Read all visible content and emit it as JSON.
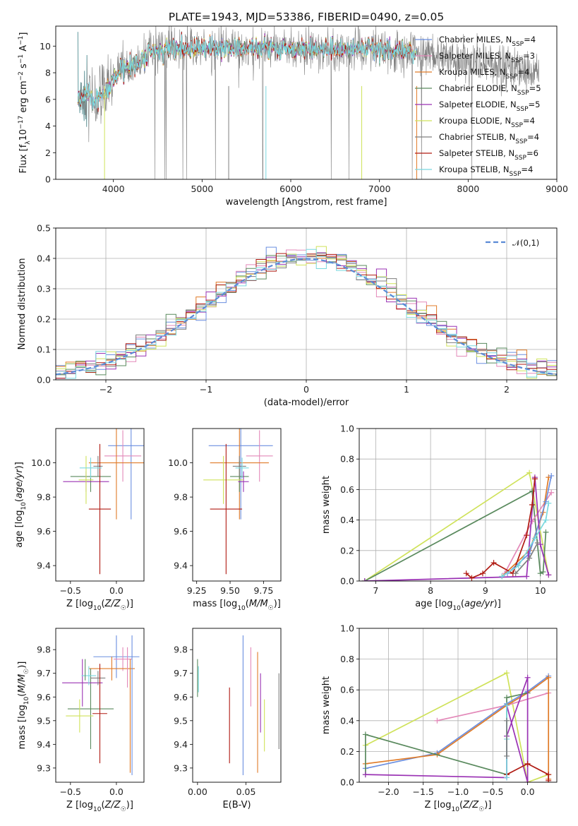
{
  "title": "PLATE=1943, MJD=53386, FIBERID=0490, z=0.05",
  "colors": {
    "chabrier_miles": "#6b8fe0",
    "salpeter_miles": "#e389b9",
    "kroupa_miles": "#e07b28",
    "chabrier_elodie": "#5a8a5e",
    "salpeter_elodie": "#9a32b4",
    "kroupa_elodie": "#cfe25a",
    "chabrier_stelib": "#7f7f7f",
    "salpeter_stelib": "#b01a12",
    "kroupa_stelib": "#79d8df",
    "normal": "#5b8ad6"
  },
  "chart_data": [
    {
      "id": "spectrum",
      "type": "line",
      "xlabel": "wavelength [Angstrom, rest frame]",
      "ylabel": "Flux [f_λ10^-17 erg cm^-2 s^-1 A^-1]",
      "xlim": [
        3350,
        9000
      ],
      "ylim": [
        0,
        11.5
      ],
      "xticks": [
        4000,
        5000,
        6000,
        7000,
        8000,
        9000
      ],
      "yticks": [
        0,
        2,
        4,
        6,
        8,
        10
      ],
      "legend_position": "upper-right",
      "legend": [
        "Chabrier MILES, N_SSP=4",
        "Salpeter MILES, N_SSP=3",
        "Kroupa MILES, N_SSP=4",
        "Chabrier ELODIE, N_SSP=5",
        "Salpeter ELODIE, N_SSP=5",
        "Kroupa ELODIE, N_SSP=4",
        "Chabrier STELIB, N_SSP=4",
        "Salpeter STELIB, N_SSP=6",
        "Kroupa STELIB, N_SSP=4"
      ],
      "continuum": {
        "x": [
          3600,
          3700,
          3800,
          3900,
          4000,
          4100,
          4200,
          4300,
          4400,
          4500,
          4600,
          4800,
          5000,
          5200,
          5500,
          6000,
          6500,
          7000,
          7400,
          7800,
          8200,
          8600,
          8800
        ],
        "y": [
          6.0,
          6.4,
          5.8,
          6.6,
          7.6,
          8.2,
          8.4,
          8.8,
          9.4,
          9.7,
          9.8,
          9.9,
          9.8,
          9.9,
          9.9,
          9.8,
          9.8,
          9.7,
          9.5,
          9.0,
          8.6,
          8.2,
          8.1
        ]
      },
      "model_range": [
        3600,
        7420
      ],
      "data_range": [
        3600,
        8800
      ],
      "series": [
        {
          "name": "Chabrier MILES, N_SSP=4",
          "color_key": "chabrier_miles",
          "model": "miles"
        },
        {
          "name": "Salpeter MILES, N_SSP=3",
          "color_key": "salpeter_miles",
          "model": "miles"
        },
        {
          "name": "Kroupa MILES, N_SSP=4",
          "color_key": "kroupa_miles",
          "model": "miles"
        },
        {
          "name": "Chabrier ELODIE, N_SSP=5",
          "color_key": "chabrier_elodie",
          "model": "elodie"
        },
        {
          "name": "Salpeter ELODIE, N_SSP=5",
          "color_key": "salpeter_elodie",
          "model": "elodie"
        },
        {
          "name": "Kroupa ELODIE, N_SSP=4",
          "color_key": "kroupa_elodie",
          "model": "elodie"
        },
        {
          "name": "Chabrier STELIB, N_SSP=4",
          "color_key": "chabrier_stelib",
          "model": "data"
        },
        {
          "name": "Salpeter STELIB, N_SSP=6",
          "color_key": "salpeter_stelib",
          "model": "stelib"
        },
        {
          "name": "Kroupa STELIB, N_SSP=4",
          "color_key": "kroupa_stelib",
          "model": "stelib"
        }
      ]
    },
    {
      "id": "residuals",
      "type": "line",
      "xlabel": "(data-model)/error",
      "ylabel": "Normed distribution",
      "xlim": [
        -2.5,
        2.5
      ],
      "ylim": [
        0,
        0.5
      ],
      "xticks": [
        -2,
        -1,
        0,
        1,
        2
      ],
      "yticks": [
        0.0,
        0.1,
        0.2,
        0.3,
        0.4,
        0.5
      ],
      "grid": true,
      "legend_position": "upper-right",
      "legend": [
        "𝒩(0,1)"
      ],
      "bin_width": 0.1,
      "series_colors": [
        "chabrier_miles",
        "salpeter_miles",
        "kroupa_miles",
        "chabrier_elodie",
        "salpeter_elodie",
        "kroupa_elodie",
        "chabrier_stelib",
        "salpeter_stelib",
        "kroupa_stelib"
      ]
    },
    {
      "id": "age_Z",
      "type": "scatter",
      "xlabel": "Z [log10(Z/Z☉)]",
      "ylabel": "age [log10(age/yr)]",
      "xlim": [
        -0.66,
        0.3
      ],
      "ylim": [
        9.31,
        10.2
      ],
      "xticks": [
        -0.5,
        0.0
      ],
      "xticklabels": [
        "−0.5",
        "0.0"
      ],
      "yticks": [
        9.4,
        9.6,
        9.8,
        10.0
      ],
      "yticklabels": [
        "9.4",
        "9.6",
        "9.8",
        "10.0"
      ],
      "points": [
        {
          "c": "chabrier_miles",
          "x": 0.16,
          "xerr": 0.25,
          "y": 10.1,
          "yerr": 0.43
        },
        {
          "c": "salpeter_miles",
          "x": 0.07,
          "xerr": 0.2,
          "y": 10.04,
          "yerr": 0.15
        },
        {
          "c": "kroupa_miles",
          "x": 0.0,
          "xerr": 0.3,
          "y": 10.0,
          "yerr": 0.33
        },
        {
          "c": "chabrier_elodie",
          "x": -0.28,
          "xerr": 0.22,
          "y": 9.92,
          "yerr": 0.09
        },
        {
          "c": "salpeter_elodie",
          "x": -0.33,
          "xerr": 0.25,
          "y": 9.89,
          "yerr": 0.06
        },
        {
          "c": "kroupa_elodie",
          "x": -0.33,
          "xerr": 0.08,
          "y": 9.9,
          "yerr": 0.14
        },
        {
          "c": "chabrier_stelib",
          "x": -0.2,
          "xerr": 0.05,
          "y": 9.98,
          "yerr": 0.06
        },
        {
          "c": "salpeter_stelib",
          "x": -0.18,
          "xerr": 0.12,
          "y": 9.73,
          "yerr": 0.38
        },
        {
          "c": "kroupa_stelib",
          "x": -0.28,
          "xerr": 0.12,
          "y": 9.97,
          "yerr": 0.06
        }
      ]
    },
    {
      "id": "age_mass",
      "type": "scatter",
      "xlabel": "mass [log10(M/M☉)]",
      "xlim": [
        9.22,
        9.88
      ],
      "ylim": [
        9.31,
        10.2
      ],
      "xticks": [
        9.25,
        9.5,
        9.75
      ],
      "xticklabels": [
        "9.25",
        "9.50",
        "9.75"
      ],
      "yticks": [
        9.4,
        9.6,
        9.8,
        10.0
      ],
      "yticklabels": [
        "9.4",
        "9.6",
        "9.8",
        "10.0"
      ],
      "points": [
        {
          "c": "chabrier_miles",
          "x": 9.58,
          "xerr": 0.24,
          "y": 10.1,
          "yerr": 0.43
        },
        {
          "c": "salpeter_miles",
          "x": 9.72,
          "xerr": 0.1,
          "y": 10.04,
          "yerr": 0.15
        },
        {
          "c": "kroupa_miles",
          "x": 9.57,
          "xerr": 0.22,
          "y": 10.0,
          "yerr": 0.33
        },
        {
          "c": "chabrier_elodie",
          "x": 9.57,
          "xerr": 0.07,
          "y": 9.92,
          "yerr": 0.09
        },
        {
          "c": "salpeter_elodie",
          "x": 9.6,
          "xerr": 0.04,
          "y": 9.89,
          "yerr": 0.06
        },
        {
          "c": "kroupa_elodie",
          "x": 9.45,
          "xerr": 0.15,
          "y": 9.9,
          "yerr": 0.14
        },
        {
          "c": "chabrier_stelib",
          "x": 9.57,
          "xerr": 0.05,
          "y": 9.98,
          "yerr": 0.06
        },
        {
          "c": "salpeter_stelib",
          "x": 9.47,
          "xerr": 0.12,
          "y": 9.73,
          "yerr": 0.38
        },
        {
          "c": "kroupa_stelib",
          "x": 9.59,
          "xerr": 0.05,
          "y": 9.97,
          "yerr": 0.06
        }
      ]
    },
    {
      "id": "mw_age",
      "type": "line",
      "xlabel": "age [log10(age/yr)]",
      "ylabel": "mass weight",
      "xlim": [
        6.7,
        10.3
      ],
      "ylim": [
        0,
        1.0
      ],
      "xticks": [
        7,
        8,
        9,
        10
      ],
      "yticks": [
        0.0,
        0.2,
        0.4,
        0.6,
        0.8,
        1.0
      ],
      "grid": true,
      "series": [
        {
          "c": "kroupa_elodie",
          "x": [
            6.8,
            9.8,
            10.15
          ],
          "y": [
            0.0,
            0.71,
            0.04
          ]
        },
        {
          "c": "chabrier_elodie",
          "x": [
            6.8,
            9.85,
            10.0,
            10.05,
            10.1
          ],
          "y": [
            0.0,
            0.59,
            0.05,
            0.06,
            0.32
          ]
        },
        {
          "c": "salpeter_miles",
          "x": [
            9.35,
            9.85,
            10.2
          ],
          "y": [
            0.05,
            0.39,
            0.58
          ]
        },
        {
          "c": "kroupa_miles",
          "x": [
            9.3,
            9.8,
            10.05,
            10.15
          ],
          "y": [
            0.03,
            0.2,
            0.45,
            0.68
          ]
        },
        {
          "c": "chabrier_miles",
          "x": [
            9.4,
            9.8,
            10.1,
            10.2
          ],
          "y": [
            0.05,
            0.18,
            0.52,
            0.69
          ]
        },
        {
          "c": "salpeter_elodie",
          "x": [
            6.8,
            9.75,
            9.9,
            10.0,
            10.15
          ],
          "y": [
            0.0,
            0.03,
            0.68,
            0.24,
            0.04
          ]
        },
        {
          "c": "salpeter_stelib",
          "x": [
            8.65,
            8.75,
            8.95,
            9.15,
            9.5,
            9.75,
            9.85,
            9.9
          ],
          "y": [
            0.05,
            0.02,
            0.05,
            0.12,
            0.05,
            0.3,
            0.5,
            0.67
          ]
        },
        {
          "c": "kroupa_stelib",
          "x": [
            9.3,
            9.6,
            9.9,
            10.1,
            10.15
          ],
          "y": [
            0.03,
            0.1,
            0.28,
            0.4,
            0.51
          ]
        },
        {
          "c": "chabrier_stelib",
          "x": [
            9.55,
            9.8,
            9.95
          ],
          "y": [
            0.05,
            0.15,
            0.25
          ]
        }
      ]
    },
    {
      "id": "mass_Z",
      "type": "scatter",
      "xlabel": "Z [log10(Z/Z☉)]",
      "ylabel": "mass [log10(M/M☉)]",
      "xlim": [
        -0.66,
        0.3
      ],
      "ylim": [
        9.24,
        9.89
      ],
      "xticks": [
        -0.5,
        0.0
      ],
      "xticklabels": [
        "−0.5",
        "0.0"
      ],
      "yticks": [
        9.3,
        9.4,
        9.5,
        9.6,
        9.7,
        9.8
      ],
      "points": [
        {
          "c": "chabrier_miles",
          "x": 0.0,
          "xerr": 0.25,
          "y": 9.77,
          "yerr": 0.09
        },
        {
          "c": "salpeter_miles",
          "x": 0.07,
          "xerr": 0.1,
          "y": 9.76,
          "yerr": 0.05
        },
        {
          "c": "kroupa_miles",
          "x": -0.05,
          "xerr": 0.25,
          "y": 9.72,
          "yerr": 0.05
        },
        {
          "c": "chabrier_elodie",
          "x": -0.28,
          "xerr": 0.25,
          "y": 9.55,
          "yerr": 0.17
        },
        {
          "c": "salpeter_elodie",
          "x": -0.37,
          "xerr": 0.22,
          "y": 9.66,
          "yerr": 0.1
        },
        {
          "c": "kroupa_elodie",
          "x": -0.4,
          "xerr": 0.15,
          "y": 9.52,
          "yerr": 0.07
        },
        {
          "c": "chabrier_stelib",
          "x": -0.2,
          "xerr": 0.08,
          "y": 9.68,
          "yerr": 0.03
        },
        {
          "c": "salpeter_stelib",
          "x": -0.18,
          "xerr": 0.08,
          "y": 9.53,
          "yerr": 0.21
        },
        {
          "c": "kroupa_stelib",
          "x": -0.3,
          "xerr": 0.08,
          "y": 9.69,
          "yerr": 0.04
        }
      ],
      "extra_vertical": [
        {
          "c": "chabrier_miles",
          "x": 0.17,
          "y1": 9.27,
          "y2": 9.86
        },
        {
          "c": "salpeter_miles",
          "x": 0.12,
          "y1": 9.64,
          "y2": 9.81
        },
        {
          "c": "kroupa_miles",
          "x": 0.15,
          "y1": 9.28,
          "y2": 9.76
        },
        {
          "c": "chabrier_elodie",
          "x": -0.34,
          "y1": 9.67,
          "y2": 9.76
        }
      ]
    },
    {
      "id": "mass_ebv",
      "type": "scatter",
      "xlabel": "E(B-V)",
      "xlim": [
        -0.005,
        0.086
      ],
      "ylim": [
        9.24,
        9.89
      ],
      "xticks": [
        0.0,
        0.05
      ],
      "xticklabels": [
        "0.00",
        "0.05"
      ],
      "yticks": [
        9.3,
        9.4,
        9.5,
        9.6,
        9.7,
        9.8
      ],
      "vlines": [
        {
          "c": "chabrier_elodie",
          "x": 0.0,
          "y1": 9.6,
          "y2": 9.76
        },
        {
          "c": "kroupa_stelib",
          "x": 0.001,
          "y1": 9.62,
          "y2": 9.73
        },
        {
          "c": "salpeter_stelib",
          "x": 0.033,
          "y1": 9.32,
          "y2": 9.64
        },
        {
          "c": "chabrier_miles",
          "x": 0.047,
          "y1": 9.27,
          "y2": 9.86
        },
        {
          "c": "salpeter_miles",
          "x": 0.055,
          "y1": 9.56,
          "y2": 9.81
        },
        {
          "c": "kroupa_miles",
          "x": 0.062,
          "y1": 9.28,
          "y2": 9.79
        },
        {
          "c": "salpeter_elodie",
          "x": 0.065,
          "y1": 9.45,
          "y2": 9.7
        },
        {
          "c": "kroupa_elodie",
          "x": 0.069,
          "y1": 9.37,
          "y2": 9.59
        },
        {
          "c": "chabrier_stelib",
          "x": 0.084,
          "y1": 9.38,
          "y2": 9.7
        }
      ]
    },
    {
      "id": "mw_Z",
      "type": "line",
      "xlabel": "Z [log10(Z/Z☉)]",
      "ylabel": "mass weight",
      "xlim": [
        -2.42,
        0.42
      ],
      "ylim": [
        0,
        1.0
      ],
      "xticks": [
        -2.0,
        -1.5,
        -1.0,
        -0.5,
        0.0
      ],
      "xticklabels": [
        "−2.0",
        "−1.5",
        "−1.0",
        "−0.5",
        "0.0"
      ],
      "yticks": [
        0.0,
        0.2,
        0.4,
        0.6,
        0.8,
        1.0
      ],
      "grid": true,
      "series": [
        {
          "c": "kroupa_elodie",
          "x": [
            -2.33,
            -0.3,
            0.0,
            0.3
          ],
          "y": [
            0.24,
            0.71,
            0.0,
            0.05
          ]
        },
        {
          "c": "salpeter_miles",
          "x": [
            -1.3,
            -0.3,
            0.3
          ],
          "y": [
            0.4,
            0.5,
            0.58
          ]
        },
        {
          "c": "chabrier_miles",
          "x": [
            -2.33,
            -1.3,
            -0.3,
            0.0,
            0.3
          ],
          "y": [
            0.09,
            0.19,
            0.51,
            0.59,
            0.69
          ]
        },
        {
          "c": "kroupa_miles",
          "x": [
            -2.33,
            -1.3,
            -0.3,
            0.0,
            0.3,
            0.3
          ],
          "y": [
            0.12,
            0.18,
            0.5,
            0.58,
            0.68,
            0.02
          ]
        },
        {
          "c": "chabrier_elodie",
          "x": [
            -2.33,
            -2.33,
            -0.3,
            -0.3,
            0.0
          ],
          "y": [
            0.05,
            0.31,
            0.05,
            0.55,
            0.58
          ]
        },
        {
          "c": "salpeter_elodie",
          "x": [
            -2.33,
            -0.3,
            -0.3,
            0.0,
            0.0,
            -0.3
          ],
          "y": [
            0.05,
            0.03,
            0.3,
            0.68,
            0.0,
            0.5
          ]
        },
        {
          "c": "salpeter_stelib",
          "x": [
            -0.3,
            0.0,
            0.3,
            0.3
          ],
          "y": [
            0.05,
            0.12,
            0.05,
            0.01
          ]
        },
        {
          "c": "kroupa_stelib",
          "x": [
            -0.3,
            -0.3,
            -0.3
          ],
          "y": [
            0.03,
            0.28,
            0.5
          ]
        },
        {
          "c": "chabrier_stelib",
          "x": [
            -0.3,
            -0.3
          ],
          "y": [
            0.17,
            0.4
          ]
        }
      ]
    }
  ]
}
